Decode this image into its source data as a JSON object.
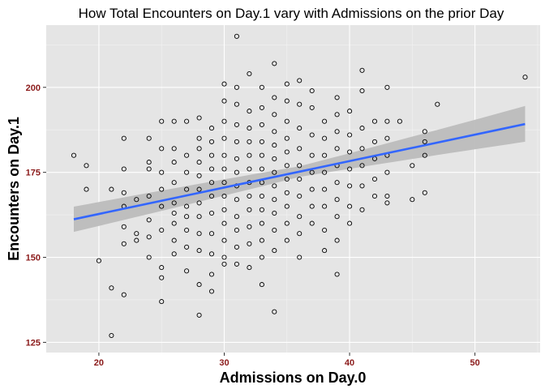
{
  "chart_data": {
    "type": "scatter",
    "title": "How Total Encounters on Day.1 vary with Admissions on the prior Day",
    "xlabel": "Admissions on Day.0",
    "ylabel": "Encounters on Day.1",
    "xlim": [
      15.8,
      55.2
    ],
    "ylim": [
      122,
      218.3
    ],
    "xticks": [
      20,
      30,
      40,
      50
    ],
    "yticks": [
      125,
      150,
      175,
      200
    ],
    "grid": true,
    "colors": {
      "panel": "#e5e5e5",
      "grid_major": "#ffffff",
      "grid_minor": "#f2f2f2",
      "tick_label": "#8b1a1a",
      "point": "#000000",
      "fit_line": "#3366ff",
      "ribbon": "#bcbcbc"
    },
    "fit": {
      "method": "lm",
      "x": [
        18,
        54
      ],
      "y": [
        161.2,
        189.2
      ],
      "ci_lower": [
        157.5,
        184.0
      ],
      "ci_upper": [
        164.9,
        194.5
      ]
    },
    "points": [
      {
        "x": 18,
        "y": 180
      },
      {
        "x": 19,
        "y": 177
      },
      {
        "x": 19,
        "y": 170
      },
      {
        "x": 20,
        "y": 149
      },
      {
        "x": 21,
        "y": 141
      },
      {
        "x": 21,
        "y": 127
      },
      {
        "x": 21,
        "y": 170
      },
      {
        "x": 22,
        "y": 185
      },
      {
        "x": 22,
        "y": 176
      },
      {
        "x": 22,
        "y": 169
      },
      {
        "x": 22,
        "y": 165
      },
      {
        "x": 22,
        "y": 159
      },
      {
        "x": 22,
        "y": 154
      },
      {
        "x": 22,
        "y": 139
      },
      {
        "x": 23,
        "y": 167
      },
      {
        "x": 23,
        "y": 157
      },
      {
        "x": 23,
        "y": 155
      },
      {
        "x": 24,
        "y": 185
      },
      {
        "x": 24,
        "y": 178
      },
      {
        "x": 24,
        "y": 176
      },
      {
        "x": 24,
        "y": 168
      },
      {
        "x": 24,
        "y": 161
      },
      {
        "x": 24,
        "y": 156
      },
      {
        "x": 24,
        "y": 150
      },
      {
        "x": 25,
        "y": 190
      },
      {
        "x": 25,
        "y": 182
      },
      {
        "x": 25,
        "y": 175
      },
      {
        "x": 25,
        "y": 170
      },
      {
        "x": 25,
        "y": 165
      },
      {
        "x": 25,
        "y": 158
      },
      {
        "x": 25,
        "y": 147
      },
      {
        "x": 25,
        "y": 144
      },
      {
        "x": 25,
        "y": 137
      },
      {
        "x": 26,
        "y": 190
      },
      {
        "x": 26,
        "y": 182
      },
      {
        "x": 26,
        "y": 178
      },
      {
        "x": 26,
        "y": 172
      },
      {
        "x": 26,
        "y": 166
      },
      {
        "x": 26,
        "y": 163
      },
      {
        "x": 26,
        "y": 160
      },
      {
        "x": 26,
        "y": 155
      },
      {
        "x": 26,
        "y": 151
      },
      {
        "x": 27,
        "y": 190
      },
      {
        "x": 27,
        "y": 180
      },
      {
        "x": 27,
        "y": 175
      },
      {
        "x": 27,
        "y": 170
      },
      {
        "x": 27,
        "y": 165
      },
      {
        "x": 27,
        "y": 162
      },
      {
        "x": 27,
        "y": 158
      },
      {
        "x": 27,
        "y": 153
      },
      {
        "x": 27,
        "y": 146
      },
      {
        "x": 28,
        "y": 191
      },
      {
        "x": 28,
        "y": 185
      },
      {
        "x": 28,
        "y": 182
      },
      {
        "x": 28,
        "y": 178
      },
      {
        "x": 28,
        "y": 174
      },
      {
        "x": 28,
        "y": 170
      },
      {
        "x": 28,
        "y": 166
      },
      {
        "x": 28,
        "y": 162
      },
      {
        "x": 28,
        "y": 157
      },
      {
        "x": 28,
        "y": 152
      },
      {
        "x": 28,
        "y": 142
      },
      {
        "x": 28,
        "y": 133
      },
      {
        "x": 29,
        "y": 188
      },
      {
        "x": 29,
        "y": 184
      },
      {
        "x": 29,
        "y": 180
      },
      {
        "x": 29,
        "y": 176
      },
      {
        "x": 29,
        "y": 172
      },
      {
        "x": 29,
        "y": 168
      },
      {
        "x": 29,
        "y": 163
      },
      {
        "x": 29,
        "y": 157
      },
      {
        "x": 29,
        "y": 151
      },
      {
        "x": 29,
        "y": 145
      },
      {
        "x": 29,
        "y": 140
      },
      {
        "x": 30,
        "y": 201
      },
      {
        "x": 30,
        "y": 196
      },
      {
        "x": 30,
        "y": 190
      },
      {
        "x": 30,
        "y": 185
      },
      {
        "x": 30,
        "y": 180
      },
      {
        "x": 30,
        "y": 176
      },
      {
        "x": 30,
        "y": 172
      },
      {
        "x": 30,
        "y": 168
      },
      {
        "x": 30,
        "y": 164
      },
      {
        "x": 30,
        "y": 160
      },
      {
        "x": 30,
        "y": 155
      },
      {
        "x": 30,
        "y": 150
      },
      {
        "x": 30,
        "y": 148
      },
      {
        "x": 31,
        "y": 215
      },
      {
        "x": 31,
        "y": 200
      },
      {
        "x": 31,
        "y": 195
      },
      {
        "x": 31,
        "y": 189
      },
      {
        "x": 31,
        "y": 184
      },
      {
        "x": 31,
        "y": 179
      },
      {
        "x": 31,
        "y": 175
      },
      {
        "x": 31,
        "y": 171
      },
      {
        "x": 31,
        "y": 167
      },
      {
        "x": 31,
        "y": 162
      },
      {
        "x": 31,
        "y": 158
      },
      {
        "x": 31,
        "y": 153
      },
      {
        "x": 31,
        "y": 148
      },
      {
        "x": 32,
        "y": 204
      },
      {
        "x": 32,
        "y": 193
      },
      {
        "x": 32,
        "y": 188
      },
      {
        "x": 32,
        "y": 184
      },
      {
        "x": 32,
        "y": 180
      },
      {
        "x": 32,
        "y": 176
      },
      {
        "x": 32,
        "y": 172
      },
      {
        "x": 32,
        "y": 168
      },
      {
        "x": 32,
        "y": 164
      },
      {
        "x": 32,
        "y": 159
      },
      {
        "x": 32,
        "y": 154
      },
      {
        "x": 32,
        "y": 147
      },
      {
        "x": 33,
        "y": 200
      },
      {
        "x": 33,
        "y": 194
      },
      {
        "x": 33,
        "y": 189
      },
      {
        "x": 33,
        "y": 184
      },
      {
        "x": 33,
        "y": 180
      },
      {
        "x": 33,
        "y": 176
      },
      {
        "x": 33,
        "y": 172
      },
      {
        "x": 33,
        "y": 168
      },
      {
        "x": 33,
        "y": 164
      },
      {
        "x": 33,
        "y": 160
      },
      {
        "x": 33,
        "y": 155
      },
      {
        "x": 33,
        "y": 150
      },
      {
        "x": 33,
        "y": 142
      },
      {
        "x": 34,
        "y": 207
      },
      {
        "x": 34,
        "y": 197
      },
      {
        "x": 34,
        "y": 192
      },
      {
        "x": 34,
        "y": 187
      },
      {
        "x": 34,
        "y": 183
      },
      {
        "x": 34,
        "y": 179
      },
      {
        "x": 34,
        "y": 175
      },
      {
        "x": 34,
        "y": 171
      },
      {
        "x": 34,
        "y": 167
      },
      {
        "x": 34,
        "y": 163
      },
      {
        "x": 34,
        "y": 158
      },
      {
        "x": 34,
        "y": 152
      },
      {
        "x": 34,
        "y": 134
      },
      {
        "x": 35,
        "y": 201
      },
      {
        "x": 35,
        "y": 196
      },
      {
        "x": 35,
        "y": 190
      },
      {
        "x": 35,
        "y": 185
      },
      {
        "x": 35,
        "y": 181
      },
      {
        "x": 35,
        "y": 177
      },
      {
        "x": 35,
        "y": 173
      },
      {
        "x": 35,
        "y": 169
      },
      {
        "x": 35,
        "y": 165
      },
      {
        "x": 35,
        "y": 160
      },
      {
        "x": 35,
        "y": 155
      },
      {
        "x": 36,
        "y": 202
      },
      {
        "x": 36,
        "y": 195
      },
      {
        "x": 36,
        "y": 188
      },
      {
        "x": 36,
        "y": 182
      },
      {
        "x": 36,
        "y": 177
      },
      {
        "x": 36,
        "y": 173
      },
      {
        "x": 36,
        "y": 168
      },
      {
        "x": 36,
        "y": 162
      },
      {
        "x": 36,
        "y": 157
      },
      {
        "x": 36,
        "y": 150
      },
      {
        "x": 37,
        "y": 199
      },
      {
        "x": 37,
        "y": 194
      },
      {
        "x": 37,
        "y": 186
      },
      {
        "x": 37,
        "y": 180
      },
      {
        "x": 37,
        "y": 175
      },
      {
        "x": 37,
        "y": 170
      },
      {
        "x": 37,
        "y": 165
      },
      {
        "x": 37,
        "y": 160
      },
      {
        "x": 38,
        "y": 190
      },
      {
        "x": 38,
        "y": 185
      },
      {
        "x": 38,
        "y": 180
      },
      {
        "x": 38,
        "y": 175
      },
      {
        "x": 38,
        "y": 170
      },
      {
        "x": 38,
        "y": 165
      },
      {
        "x": 38,
        "y": 158
      },
      {
        "x": 38,
        "y": 152
      },
      {
        "x": 39,
        "y": 197
      },
      {
        "x": 39,
        "y": 192
      },
      {
        "x": 39,
        "y": 187
      },
      {
        "x": 39,
        "y": 182
      },
      {
        "x": 39,
        "y": 177
      },
      {
        "x": 39,
        "y": 172
      },
      {
        "x": 39,
        "y": 167
      },
      {
        "x": 39,
        "y": 162
      },
      {
        "x": 39,
        "y": 155
      },
      {
        "x": 39,
        "y": 145
      },
      {
        "x": 40,
        "y": 193
      },
      {
        "x": 40,
        "y": 186
      },
      {
        "x": 40,
        "y": 181
      },
      {
        "x": 40,
        "y": 176
      },
      {
        "x": 40,
        "y": 171
      },
      {
        "x": 40,
        "y": 165
      },
      {
        "x": 40,
        "y": 160
      },
      {
        "x": 41,
        "y": 205
      },
      {
        "x": 41,
        "y": 199
      },
      {
        "x": 41,
        "y": 188
      },
      {
        "x": 41,
        "y": 182
      },
      {
        "x": 41,
        "y": 177
      },
      {
        "x": 41,
        "y": 171
      },
      {
        "x": 41,
        "y": 164
      },
      {
        "x": 42,
        "y": 190
      },
      {
        "x": 42,
        "y": 184
      },
      {
        "x": 42,
        "y": 179
      },
      {
        "x": 42,
        "y": 173
      },
      {
        "x": 42,
        "y": 168
      },
      {
        "x": 43,
        "y": 200
      },
      {
        "x": 43,
        "y": 190
      },
      {
        "x": 43,
        "y": 185
      },
      {
        "x": 43,
        "y": 180
      },
      {
        "x": 43,
        "y": 175
      },
      {
        "x": 43,
        "y": 168
      },
      {
        "x": 43,
        "y": 166
      },
      {
        "x": 44,
        "y": 190
      },
      {
        "x": 45,
        "y": 177
      },
      {
        "x": 45,
        "y": 167
      },
      {
        "x": 46,
        "y": 187
      },
      {
        "x": 46,
        "y": 184
      },
      {
        "x": 46,
        "y": 180
      },
      {
        "x": 46,
        "y": 169
      },
      {
        "x": 47,
        "y": 195
      },
      {
        "x": 54,
        "y": 203
      }
    ]
  }
}
